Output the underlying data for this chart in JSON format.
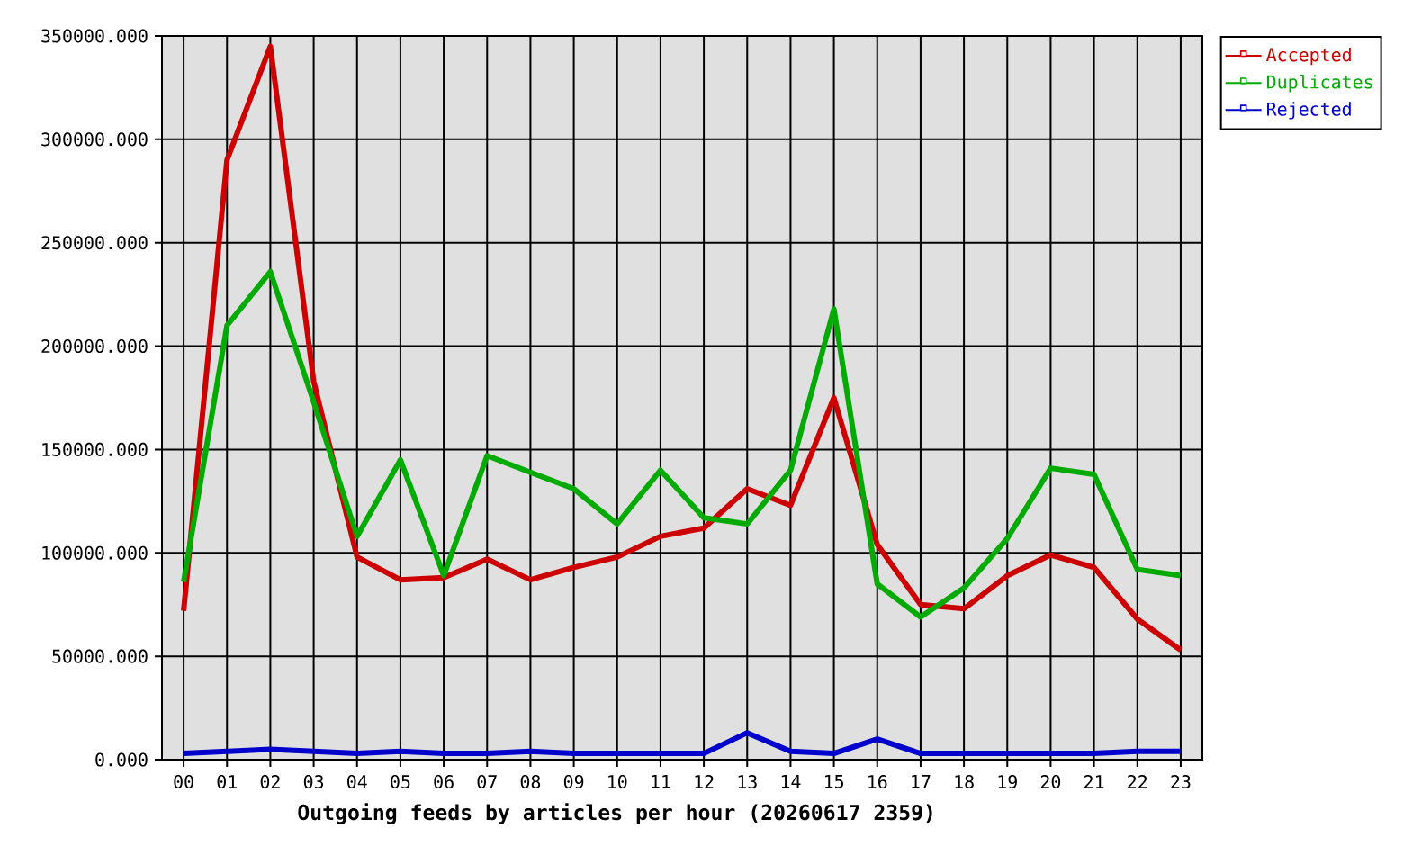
{
  "chart_data": {
    "type": "line",
    "xlabel": "Outgoing feeds by articles per hour (20260617 2359)",
    "categories": [
      "00",
      "01",
      "02",
      "03",
      "04",
      "05",
      "06",
      "07",
      "08",
      "09",
      "10",
      "11",
      "12",
      "13",
      "14",
      "15",
      "16",
      "17",
      "18",
      "19",
      "20",
      "21",
      "22",
      "23"
    ],
    "series": [
      {
        "name": "Accepted",
        "color": "#cc0000",
        "values": [
          72000,
          290000,
          345000,
          183000,
          98000,
          87000,
          88000,
          97000,
          87000,
          93000,
          98000,
          108000,
          112000,
          131000,
          123000,
          175000,
          104000,
          75000,
          73000,
          89000,
          99000,
          93000,
          68000,
          53000
        ]
      },
      {
        "name": "Duplicates",
        "color": "#00aa00",
        "values": [
          86000,
          210000,
          236000,
          173000,
          108000,
          145000,
          89000,
          147000,
          139000,
          131000,
          114000,
          140000,
          117000,
          114000,
          140000,
          218000,
          85000,
          69000,
          83000,
          107000,
          141000,
          138000,
          92000,
          89000
        ]
      },
      {
        "name": "Rejected",
        "color": "#0000cc",
        "values": [
          3000,
          4000,
          5000,
          4000,
          3000,
          4000,
          3000,
          3000,
          4000,
          3000,
          3000,
          3000,
          3000,
          13000,
          4000,
          3000,
          10000,
          3000,
          3000,
          3000,
          3000,
          3000,
          4000,
          4000
        ]
      }
    ],
    "ylim": [
      0,
      350000
    ],
    "yticks": [
      {
        "value": 0,
        "label": "0.000"
      },
      {
        "value": 50000,
        "label": "50000.000"
      },
      {
        "value": 100000,
        "label": "100000.000"
      },
      {
        "value": 150000,
        "label": "150000.000"
      },
      {
        "value": 200000,
        "label": "200000.000"
      },
      {
        "value": 250000,
        "label": "250000.000"
      },
      {
        "value": 300000,
        "label": "300000.000"
      },
      {
        "value": 350000,
        "label": "350000.000"
      }
    ],
    "grid": true,
    "legend": "top right",
    "line_style": "solid"
  }
}
